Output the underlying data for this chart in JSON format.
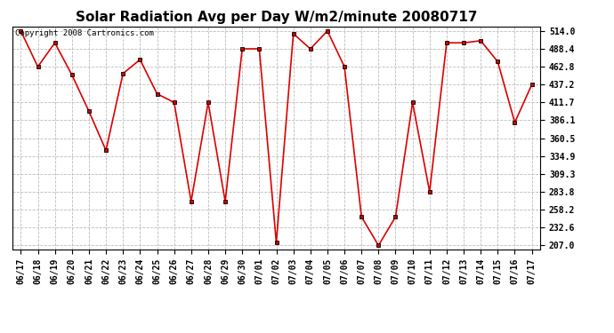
{
  "title": "Solar Radiation Avg per Day W/m2/minute 20080717",
  "copyright": "Copyright 2008 Cartronics.com",
  "labels": [
    "06/17",
    "06/18",
    "06/19",
    "06/20",
    "06/21",
    "06/22",
    "06/23",
    "06/24",
    "06/25",
    "06/26",
    "06/27",
    "06/28",
    "06/29",
    "06/30",
    "07/01",
    "07/02",
    "07/03",
    "07/04",
    "07/05",
    "07/06",
    "07/07",
    "07/08",
    "07/09",
    "07/10",
    "07/11",
    "07/12",
    "07/13",
    "07/14",
    "07/15",
    "07/16",
    "07/17"
  ],
  "values": [
    514.0,
    462.8,
    497.0,
    451.0,
    399.0,
    343.0,
    453.0,
    473.0,
    424.0,
    411.7,
    270.0,
    411.7,
    270.0,
    488.4,
    488.4,
    211.0,
    510.0,
    488.4,
    514.0,
    462.8,
    248.0,
    207.0,
    248.0,
    411.7,
    283.8,
    497.0,
    497.0,
    500.0,
    470.0,
    383.0,
    437.2
  ],
  "ylim_min": 207.0,
  "ylim_max": 514.0,
  "yticks": [
    207.0,
    232.6,
    258.2,
    283.8,
    309.3,
    334.9,
    360.5,
    386.1,
    411.7,
    437.2,
    462.8,
    488.4,
    514.0
  ],
  "line_color": "#dd0000",
  "marker_color": "#cc0000",
  "bg_color": "#ffffff",
  "grid_color": "#bbbbbb",
  "title_fontsize": 11,
  "tick_fontsize": 7,
  "copyright_fontsize": 6.5,
  "figwidth": 6.9,
  "figheight": 3.75,
  "dpi": 100
}
